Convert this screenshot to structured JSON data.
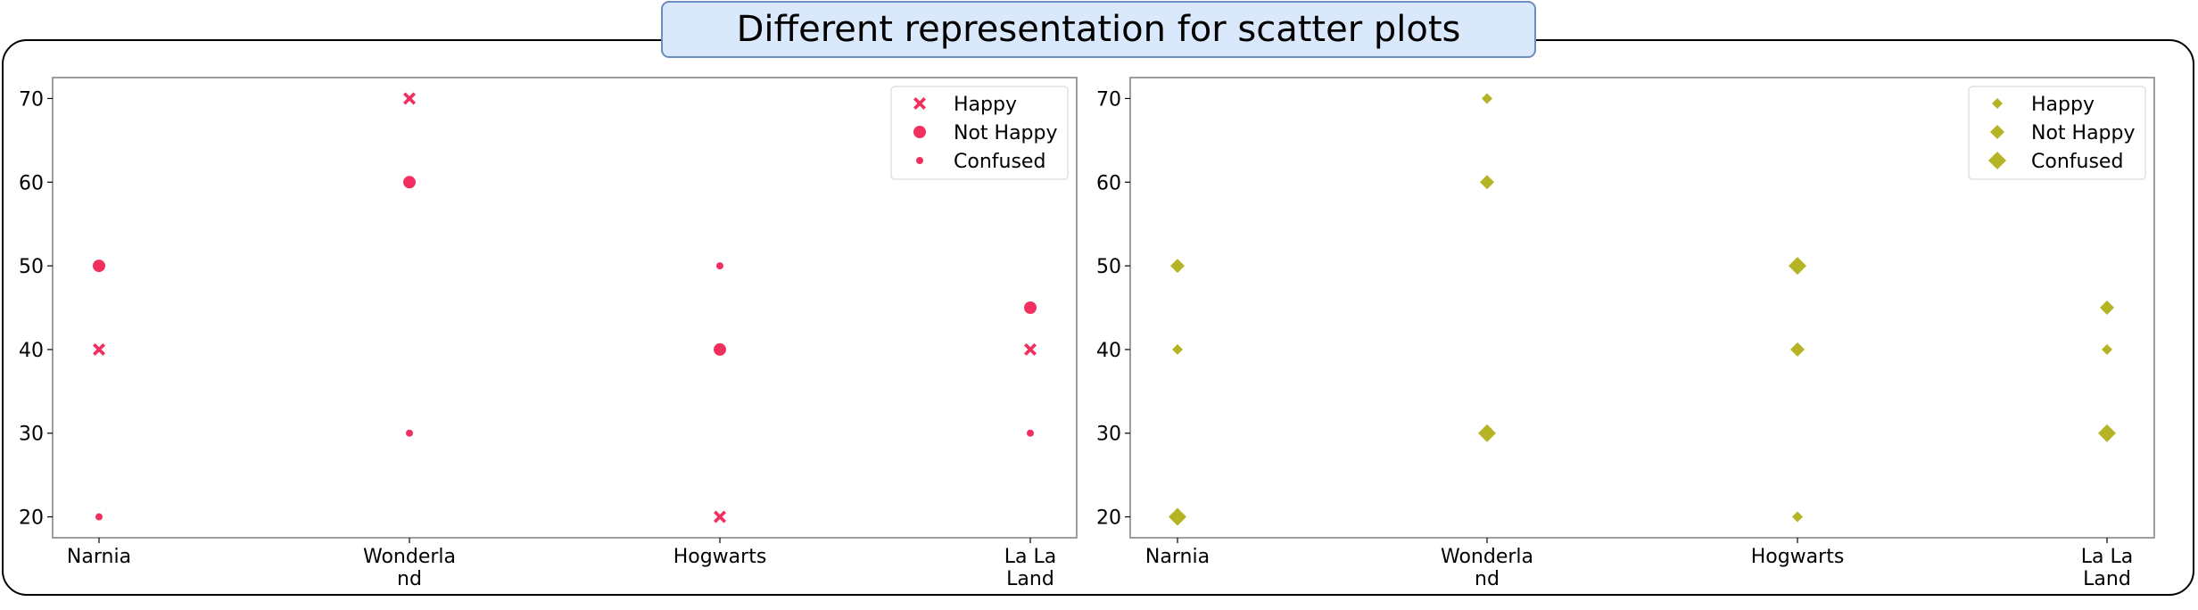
{
  "header": {
    "title": "Different representation for scatter plots"
  },
  "colors": {
    "left_marker": "#f2305f",
    "right_marker": "#b5b425",
    "axes_frame": "#7f7f7f"
  },
  "chart_data": [
    {
      "type": "scatter",
      "categories": [
        "Narnia",
        "Wonderla\nnd",
        "Hogwarts",
        "La La\nLand"
      ],
      "yticks": [
        20,
        30,
        40,
        50,
        60,
        70
      ],
      "ylim": [
        17.5,
        72.5
      ],
      "legend_position": "top-right",
      "grid": false,
      "color": "#f2305f",
      "series": [
        {
          "name": "Happy",
          "marker": "x-filled",
          "values": [
            40,
            70,
            20,
            40
          ]
        },
        {
          "name": "Not Happy",
          "marker": "circle-large",
          "values": [
            50,
            60,
            40,
            45
          ]
        },
        {
          "name": "Confused",
          "marker": "circle-small",
          "values": [
            20,
            30,
            50,
            30
          ]
        }
      ]
    },
    {
      "type": "scatter",
      "categories": [
        "Narnia",
        "Wonderla\nnd",
        "Hogwarts",
        "La La\nLand"
      ],
      "yticks": [
        20,
        30,
        40,
        50,
        60,
        70
      ],
      "ylim": [
        17.5,
        72.5
      ],
      "legend_position": "top-right",
      "grid": false,
      "color": "#b5b425",
      "series": [
        {
          "name": "Happy",
          "marker": "diamond-small",
          "values": [
            40,
            70,
            20,
            40
          ]
        },
        {
          "name": "Not Happy",
          "marker": "diamond-medium",
          "values": [
            50,
            60,
            40,
            45
          ]
        },
        {
          "name": "Confused",
          "marker": "diamond-large",
          "values": [
            20,
            30,
            50,
            30
          ]
        }
      ]
    }
  ]
}
